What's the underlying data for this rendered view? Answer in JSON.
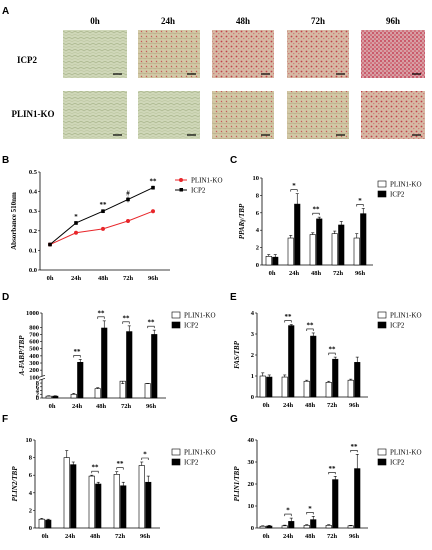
{
  "panel_a": {
    "letter": "A",
    "timepoints": [
      "0h",
      "24h",
      "48h",
      "72h",
      "96h"
    ],
    "rows": [
      "ICP2",
      "PLIN1-KO"
    ]
  },
  "chart_data": [
    {
      "id": "B",
      "letter": "B",
      "type": "line",
      "ylabel": "Absorbance 510nm",
      "ylim": [
        0.0,
        0.5
      ],
      "yticks": [
        "0.0",
        "0.1",
        "0.2",
        "0.3",
        "0.4",
        "0.5"
      ],
      "categories": [
        "0h",
        "24h",
        "48h",
        "72h",
        "96h"
      ],
      "series": [
        {
          "name": "PLIN1-KO",
          "color": "#e8262a",
          "values": [
            0.13,
            0.19,
            0.21,
            0.25,
            0.3
          ],
          "errors": [
            0.005,
            0.005,
            0.005,
            0.005,
            0.01
          ]
        },
        {
          "name": "ICP2",
          "color": "#000000",
          "values": [
            0.13,
            0.24,
            0.3,
            0.36,
            0.42
          ],
          "errors": [
            0.005,
            0.01,
            0.01,
            0.015,
            0.01
          ]
        }
      ],
      "annotations": [
        "",
        "*",
        "**",
        "#",
        "**"
      ]
    },
    {
      "id": "C",
      "letter": "C",
      "type": "bar",
      "ylabel": "PPARγ/TBP",
      "ylim": [
        0,
        10
      ],
      "yticks": [
        "0",
        "2",
        "4",
        "6",
        "8",
        "10"
      ],
      "categories": [
        "0h",
        "24h",
        "48h",
        "72h",
        "96h"
      ],
      "series": [
        {
          "name": "PLIN1-KO",
          "fill": "#ffffff",
          "values": [
            1.0,
            3.1,
            3.5,
            3.6,
            3.1
          ],
          "errors": [
            0.2,
            0.3,
            0.2,
            0.3,
            0.5
          ]
        },
        {
          "name": "ICP2",
          "fill": "#000000",
          "values": [
            0.9,
            7.0,
            5.3,
            4.6,
            5.9
          ],
          "errors": [
            0.3,
            1.2,
            0.2,
            0.4,
            0.6
          ]
        }
      ],
      "annotations": [
        "",
        "*",
        "**",
        "",
        "*"
      ]
    },
    {
      "id": "D",
      "letter": "D",
      "type": "bar",
      "ylabel": "A-FABP/TBP",
      "ylim": [
        0,
        1000
      ],
      "yticks": [
        "0",
        "2",
        "4",
        "6",
        "8",
        "100",
        "200",
        "300",
        "400",
        "500",
        "600",
        "700",
        "800",
        "1000"
      ],
      "categories": [
        "0h",
        "24h",
        "48h",
        "72h",
        "96h"
      ],
      "series": [
        {
          "name": "PLIN1-KO",
          "fill": "#ffffff",
          "values": [
            1,
            2,
            5,
            9,
            11
          ],
          "errors": [
            0.2,
            0.5,
            0.5,
            2.5,
            3
          ]
        },
        {
          "name": "ICP2",
          "fill": "#000000",
          "values": [
            1,
            310,
            790,
            740,
            700
          ],
          "errors": [
            0.2,
            40,
            100,
            80,
            60
          ]
        }
      ],
      "annotations": [
        "",
        "**",
        "**",
        "**",
        "**"
      ]
    },
    {
      "id": "E",
      "letter": "E",
      "type": "bar",
      "ylabel": "FAS/TBP",
      "ylim": [
        0,
        4
      ],
      "yticks": [
        "0",
        "1",
        "2",
        "3",
        "4"
      ],
      "categories": [
        "0h",
        "24h",
        "48h",
        "72h",
        "96h"
      ],
      "series": [
        {
          "name": "PLIN1-KO",
          "fill": "#ffffff",
          "values": [
            1.0,
            0.95,
            0.75,
            0.7,
            0.8
          ],
          "errors": [
            0.15,
            0.1,
            0.05,
            0.05,
            0.05
          ]
        },
        {
          "name": "ICP2",
          "fill": "#000000",
          "values": [
            0.95,
            3.4,
            2.9,
            1.8,
            1.65
          ],
          "errors": [
            0.1,
            0.05,
            0.15,
            0.1,
            0.25
          ]
        }
      ],
      "annotations": [
        "",
        "**",
        "**",
        "**",
        ""
      ]
    },
    {
      "id": "F",
      "letter": "F",
      "type": "bar",
      "ylabel": "PLIN2/TBP",
      "ylim": [
        0,
        10
      ],
      "yticks": [
        "0",
        "2",
        "4",
        "6",
        "8",
        "10"
      ],
      "categories": [
        "0h",
        "24h",
        "48h",
        "72h",
        "96h"
      ],
      "series": [
        {
          "name": "PLIN1-KO",
          "fill": "#ffffff",
          "values": [
            1.0,
            8.0,
            5.9,
            6.1,
            7.1
          ],
          "errors": [
            0.1,
            0.8,
            0.1,
            0.3,
            0.4
          ]
        },
        {
          "name": "ICP2",
          "fill": "#000000",
          "values": [
            0.9,
            7.2,
            5.0,
            4.8,
            5.2
          ],
          "errors": [
            0.1,
            0.3,
            0.2,
            0.4,
            0.7
          ]
        }
      ],
      "annotations": [
        "",
        "",
        "**",
        "**",
        "*"
      ]
    },
    {
      "id": "G",
      "letter": "G",
      "type": "bar",
      "ylabel": "PLIN1/TBP",
      "ylim": [
        0,
        40
      ],
      "yticks": [
        "0",
        "10",
        "20",
        "30",
        "40"
      ],
      "categories": [
        "0h",
        "24h",
        "48h",
        "72h",
        "96h"
      ],
      "series": [
        {
          "name": "PLIN1-KO",
          "fill": "#ffffff",
          "values": [
            0.8,
            1.0,
            1.2,
            1.2,
            1.0
          ],
          "errors": [
            0.2,
            0.3,
            0.3,
            0.3,
            0.2
          ]
        },
        {
          "name": "ICP2",
          "fill": "#000000",
          "values": [
            0.9,
            3.0,
            3.8,
            22.0,
            27.0
          ],
          "errors": [
            0.3,
            1.5,
            1.5,
            1.5,
            6.5
          ]
        }
      ],
      "annotations": [
        "",
        "*",
        "*",
        "**",
        "**"
      ]
    }
  ]
}
